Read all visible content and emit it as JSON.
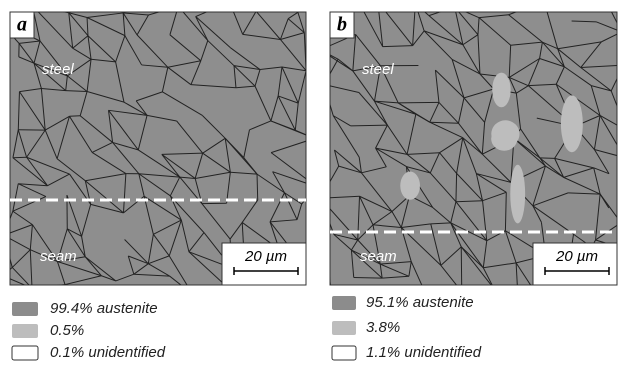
{
  "panels": [
    {
      "label": "a",
      "region_top": "steel",
      "region_bottom": "seam",
      "scale_bar": "20 µm",
      "legend": [
        "99.4% austenite",
        "0.5%",
        "0.1% unidentified"
      ]
    },
    {
      "label": "b",
      "region_top": "steel",
      "region_bottom": "seam",
      "scale_bar": "20 µm",
      "legend": [
        "95.1% austenite",
        "3.8%",
        "1.1% unidentified"
      ]
    }
  ]
}
